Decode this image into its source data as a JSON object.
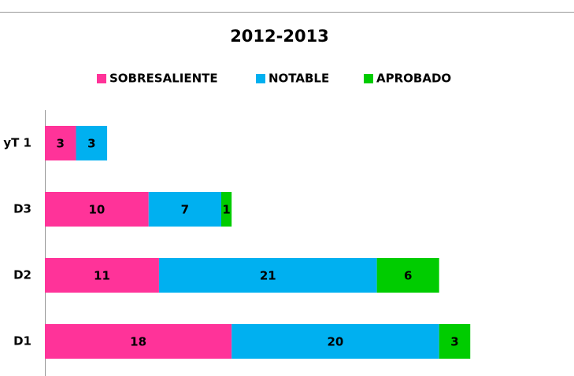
{
  "chart_data": {
    "type": "bar",
    "orientation": "horizontal",
    "stacked": true,
    "title": "2012-2013",
    "categories": [
      "yT 1",
      "D3",
      "D2",
      "D1"
    ],
    "series": [
      {
        "name": "SOBRESALIENTE",
        "color": "#ff3399",
        "values": [
          3,
          10,
          11,
          18
        ]
      },
      {
        "name": "NOTABLE",
        "color": "#00b0f0",
        "values": [
          3,
          7,
          21,
          20
        ]
      },
      {
        "name": "APROBADO",
        "color": "#00cc00",
        "values": [
          null,
          1,
          6,
          3
        ]
      }
    ],
    "xlim": [
      0,
      51
    ],
    "legend": "top"
  }
}
